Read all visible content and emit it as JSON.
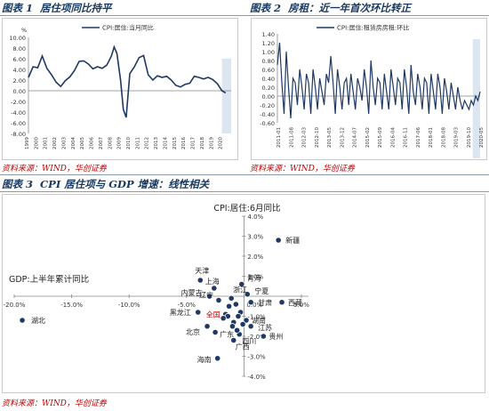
{
  "figures": [
    {
      "id": "fig1",
      "label": "图表 1",
      "title": "居住项同比持平",
      "source": "资料来源：WIND，华创证券"
    },
    {
      "id": "fig2",
      "label": "图表 2",
      "title": "房租：近一年首次环比转正",
      "source": "资料来源：WIND，华创证券"
    },
    {
      "id": "fig3",
      "label": "图表 3",
      "title": "CPI 居住项与 GDP 增速：线性相关",
      "source": "资料来源：WIND，华创证券"
    }
  ],
  "colors": {
    "line": "#1f3864",
    "dot": "#1f3864",
    "highlight": "#c00000",
    "shade": "#dce6f1",
    "title": "#17375e",
    "source": "#c00000"
  },
  "chart_data": [
    {
      "type": "line",
      "legend": "CPI:居住:当月同比",
      "unit": "%",
      "ylim": [
        -8,
        10
      ],
      "yticks": [
        "10.00",
        "8.00",
        "6.00",
        "4.00",
        "2.00",
        "0.00",
        "-2.00",
        "-4.00",
        "-6.00",
        "-8.00"
      ],
      "xticks": [
        "1999",
        "2000",
        "2001",
        "2002",
        "2003",
        "2004",
        "2005",
        "2006",
        "2007",
        "2008",
        "2009",
        "2010",
        "2011",
        "2012",
        "2013",
        "2014",
        "2015",
        "2016",
        "2017",
        "2018",
        "2019",
        "2020"
      ],
      "shaded_from": "2020",
      "series": [
        {
          "name": "CPI:居住:当月同比",
          "x": [
            1999.0,
            1999.5,
            2000.0,
            2000.5,
            2001.0,
            2001.5,
            2002.0,
            2002.5,
            2003.0,
            2003.5,
            2004.0,
            2004.5,
            2005.0,
            2005.5,
            2006.0,
            2006.5,
            2007.0,
            2007.5,
            2008.0,
            2008.3,
            2008.6,
            2009.0,
            2009.3,
            2009.6,
            2010.0,
            2010.5,
            2011.0,
            2011.5,
            2012.0,
            2012.5,
            2013.0,
            2013.5,
            2014.0,
            2014.5,
            2015.0,
            2015.5,
            2016.0,
            2016.5,
            2017.0,
            2017.5,
            2018.0,
            2018.5,
            2019.0,
            2019.5,
            2020.0,
            2020.4
          ],
          "values": [
            2.5,
            4.5,
            4.3,
            6.5,
            4.2,
            3.0,
            1.6,
            0.8,
            1.9,
            2.6,
            3.8,
            5.5,
            5.6,
            5.0,
            4.1,
            4.5,
            4.2,
            4.8,
            6.5,
            8.2,
            7.0,
            2.0,
            -3.5,
            -5.0,
            3.2,
            4.5,
            6.2,
            6.6,
            3.0,
            2.0,
            2.8,
            2.5,
            2.7,
            2.0,
            1.0,
            0.7,
            1.2,
            1.4,
            2.7,
            2.5,
            2.2,
            2.5,
            2.1,
            1.3,
            0.0,
            -0.4
          ]
        }
      ]
    },
    {
      "type": "line",
      "legend": "CPI:居住:租赁房房租:环比",
      "ylim": [
        -0.6,
        1.4
      ],
      "yticks": [
        "1.40",
        "1.20",
        "1.00",
        "0.80",
        "0.60",
        "0.40",
        "0.20",
        "0.00",
        "-0.20",
        "-0.40",
        "-0.60"
      ],
      "xticks": [
        "2011-01",
        "2011-08",
        "2012-03",
        "2012-10",
        "2013-05",
        "2013-12",
        "2014-07",
        "2015-02",
        "2015-09",
        "2016-04",
        "2016-11",
        "2017-06",
        "2018-01",
        "2018-08",
        "2019-03",
        "2019-10",
        "2020-05"
      ],
      "shaded_from": "2019-10",
      "series": [
        {
          "name": "CPI:居住:租赁房房租:环比",
          "values": [
            0.7,
            1.2,
            0.3,
            -0.4,
            1.0,
            0.2,
            -0.5,
            0.4,
            0.3,
            -0.2,
            0.6,
            0.2,
            -0.3,
            0.5,
            0.3,
            -0.4,
            0.6,
            0.2,
            -0.3,
            0.4,
            0.1,
            -0.2,
            0.5,
            0.3,
            0.9,
            0.3,
            -0.4,
            0.6,
            0.2,
            -0.3,
            0.3,
            0.4,
            -0.2,
            0.5,
            0.1,
            -0.3,
            0.4,
            0.2,
            -0.1,
            0.6,
            0.2,
            -0.4,
            0.8,
            0.2,
            -0.2,
            0.4,
            0.3,
            -0.3,
            0.5,
            0.1,
            -0.3,
            0.6,
            0.2,
            -0.2,
            0.4,
            0.3,
            -0.3,
            0.6,
            0.2,
            -0.4,
            0.7,
            0.1,
            -0.2,
            0.5,
            0.2,
            -0.3,
            0.4,
            0.3,
            -0.4,
            0.5,
            0.1,
            -0.3,
            0.5,
            0.2,
            -0.4,
            0.4,
            0.1,
            -0.3,
            0.3,
            0.0,
            -0.3,
            0.2,
            -0.1,
            -0.3,
            -0.1,
            -0.2,
            -0.3,
            -0.1,
            -0.2,
            0.0,
            -0.1,
            0.1
          ]
        }
      ]
    },
    {
      "type": "scatter",
      "ylabel": "CPI:居住:6月同比",
      "xlabel": "GDP:上半年累计同比",
      "xlim": [
        -20,
        5
      ],
      "ylim": [
        -4,
        4
      ],
      "xticks": [
        "-20.0%",
        "-15.0%",
        "-10.0%",
        "-5.0%",
        "0.0%",
        "5.0%"
      ],
      "yticks": [
        "4.0%",
        "3.0%",
        "2.0%",
        "1.0%",
        "0.0%",
        "-1.0%",
        "-2.0%",
        "-3.0%",
        "-4.0%"
      ],
      "points": [
        {
          "name": "湖北",
          "x": -19.3,
          "y": -1.2
        },
        {
          "name": "新疆",
          "x": 3.0,
          "y": 2.8
        },
        {
          "name": "天津",
          "x": -3.8,
          "y": 0.8
        },
        {
          "name": "上海",
          "x": -2.6,
          "y": 0.4
        },
        {
          "name": "内蒙古",
          "x": -3.0,
          "y": 0.0
        },
        {
          "name": "辽宁",
          "x": -2.2,
          "y": -0.2
        },
        {
          "name": "青海",
          "x": -0.2,
          "y": 0.6
        },
        {
          "name": "宁夏",
          "x": 0.3,
          "y": 0.1
        },
        {
          "name": "浙江",
          "x": -1.1,
          "y": -0.1
        },
        {
          "name": "甘肃",
          "x": 0.6,
          "y": -0.3
        },
        {
          "name": "西藏",
          "x": 3.3,
          "y": -0.3
        },
        {
          "name": "黑龙江",
          "x": -4.0,
          "y": -0.8
        },
        {
          "name": "全国",
          "x": -1.6,
          "y": -0.9,
          "highlight": true
        },
        {
          "name": "湖南",
          "x": 0.2,
          "y": -1.2
        },
        {
          "name": "江苏",
          "x": 0.6,
          "y": -1.5
        },
        {
          "name": "北京",
          "x": -3.2,
          "y": -1.5
        },
        {
          "name": "广东",
          "x": -2.5,
          "y": -1.8
        },
        {
          "name": "四川",
          "x": -0.4,
          "y": -1.9
        },
        {
          "name": "贵州",
          "x": 1.7,
          "y": -2.0
        },
        {
          "name": "广西",
          "x": -0.9,
          "y": -2.2
        },
        {
          "name": "海南",
          "x": -2.3,
          "y": -3.1
        },
        {
          "name": "",
          "x": -1.3,
          "y": -0.5
        },
        {
          "name": "",
          "x": -0.7,
          "y": -0.4
        },
        {
          "name": "",
          "x": -1.4,
          "y": -1.0
        },
        {
          "name": "",
          "x": -0.3,
          "y": -0.8
        },
        {
          "name": "",
          "x": -0.9,
          "y": -1.3
        },
        {
          "name": "",
          "x": -0.5,
          "y": -1.0
        },
        {
          "name": "",
          "x": -1.0,
          "y": -1.5
        },
        {
          "name": "",
          "x": -0.1,
          "y": -1.4
        },
        {
          "name": "",
          "x": -0.6,
          "y": -1.7
        },
        {
          "name": "",
          "x": -1.8,
          "y": -1.1
        }
      ]
    }
  ]
}
